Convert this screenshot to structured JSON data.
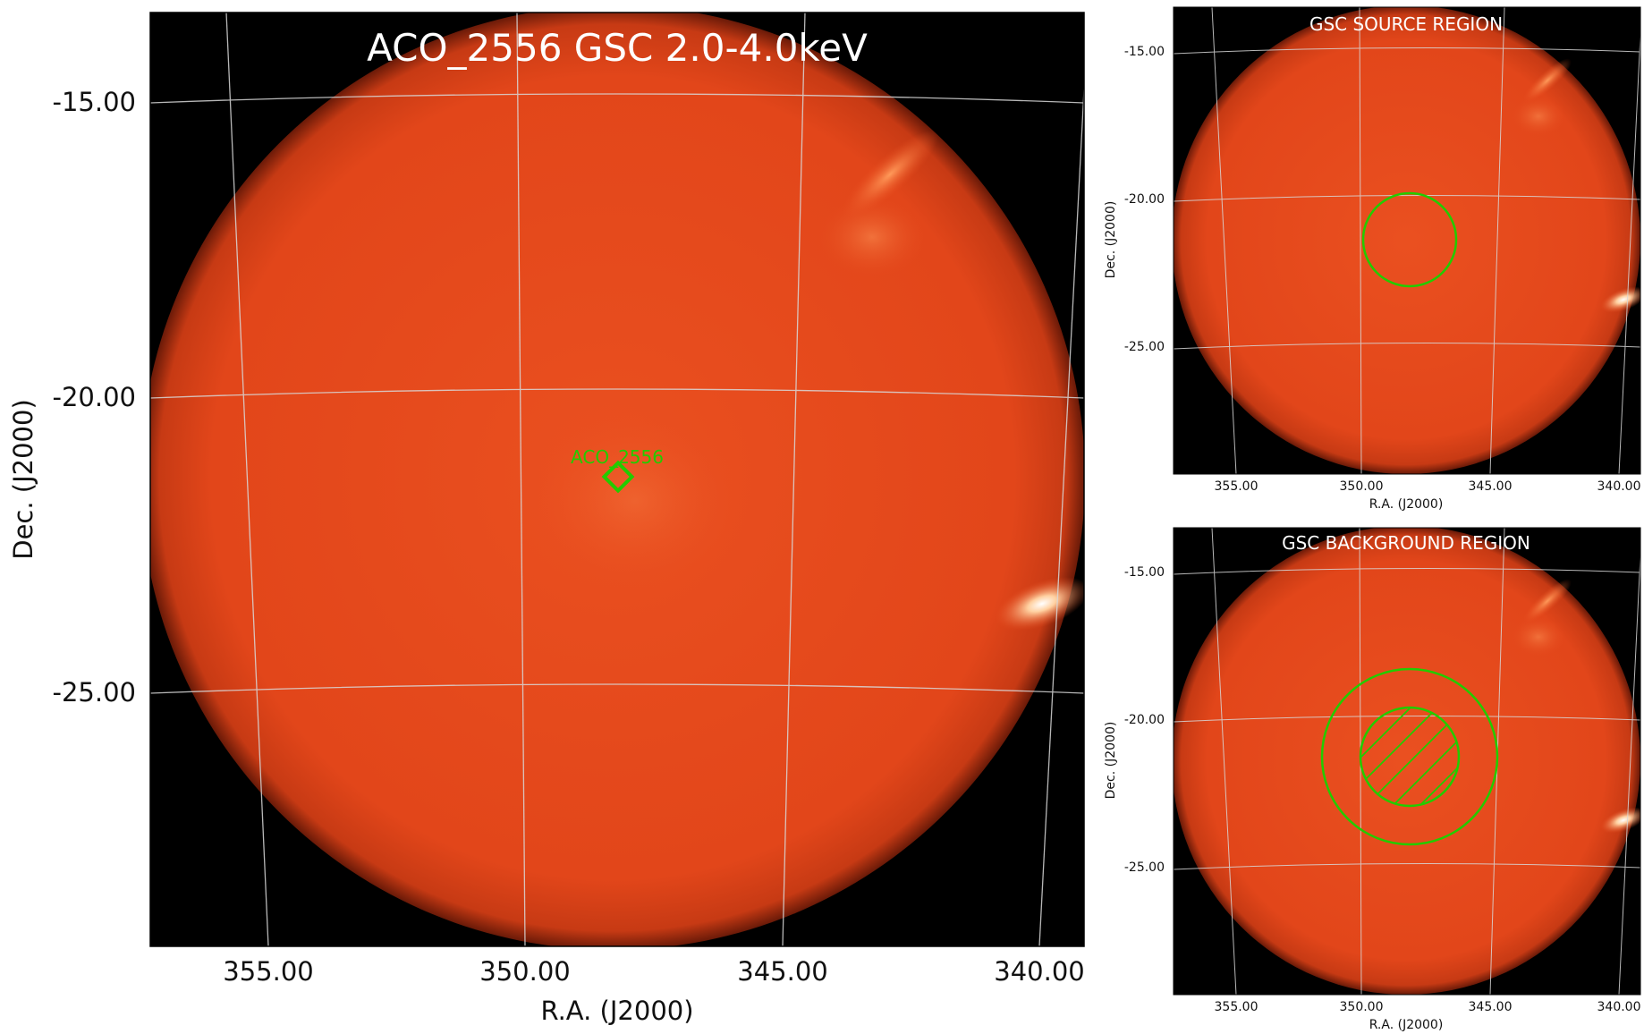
{
  "main": {
    "title": "ACO_2556 GSC 2.0-4.0keV",
    "xlabel": "R.A. (J2000)",
    "ylabel": "Dec. (J2000)",
    "xticks": [
      "355.00",
      "350.00",
      "345.00",
      "340.00"
    ],
    "yticks": [
      "-15.00",
      "-20.00",
      "-25.00"
    ],
    "source_label": "ACO_2556"
  },
  "source_panel": {
    "title": "GSC SOURCE REGION",
    "xlabel": "R.A. (J2000)",
    "ylabel": "Dec. (J2000)",
    "xticks": [
      "355.00",
      "350.00",
      "345.00",
      "340.00"
    ],
    "yticks": [
      "-15.00",
      "-20.00",
      "-25.00"
    ]
  },
  "background_panel": {
    "title": "GSC BACKGROUND REGION",
    "xlabel": "R.A. (J2000)",
    "ylabel": "Dec. (J2000)",
    "xticks": [
      "355.00",
      "350.00",
      "345.00",
      "340.00"
    ],
    "yticks": [
      "-15.00",
      "-20.00",
      "-25.00"
    ]
  },
  "colors": {
    "sky": "#000000",
    "map_fill": "#e2451a",
    "grid": "#d8d8d8",
    "region": "#22cc00",
    "text": "#111111",
    "title_on_image": "#ffffff"
  }
}
